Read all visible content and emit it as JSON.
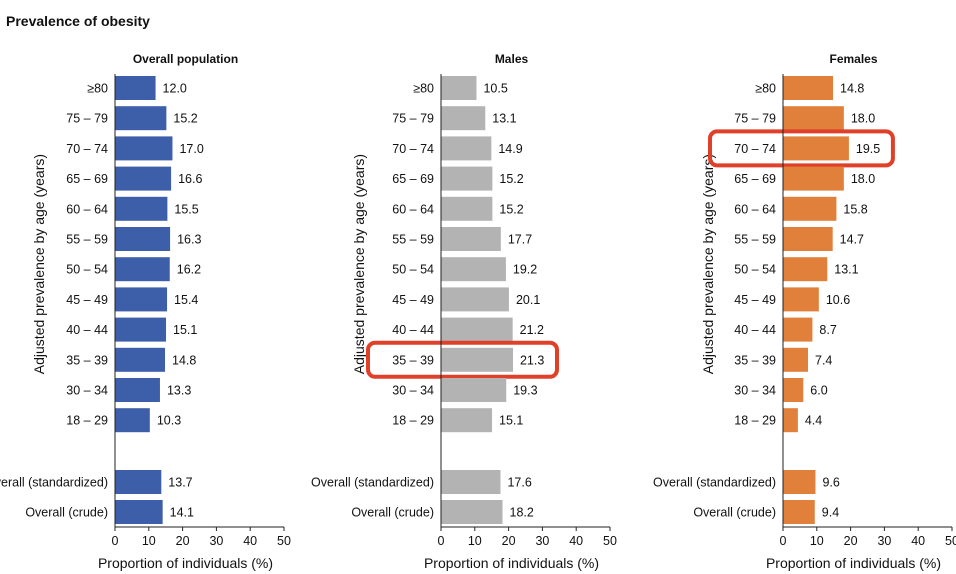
{
  "figure": {
    "title": "Prevalence of obesity",
    "ylabel": "Adjusted prevalence by age (years)"
  },
  "chart_data": [
    {
      "type": "bar",
      "orientation": "horizontal",
      "title": "Overall population",
      "xlabel": "Proportion of individuals (%)",
      "ylabel": "Adjusted prevalence by age (years)",
      "xlim": [
        0,
        50
      ],
      "xticks": [
        "0",
        "10",
        "20",
        "30",
        "40",
        "50"
      ],
      "color": "#3d5ea8",
      "categories": [
        "≥80",
        "75 – 79",
        "70 – 74",
        "65 – 69",
        "60 – 64",
        "55 – 59",
        "50 – 54",
        "45 – 49",
        "40 – 44",
        "35 – 39",
        "30 – 34",
        "18 – 29",
        "Overall (standardized)",
        "Overall (crude)"
      ],
      "values": [
        12.0,
        15.2,
        17.0,
        16.6,
        15.5,
        16.3,
        16.2,
        15.4,
        15.1,
        14.8,
        13.3,
        10.3,
        13.7,
        14.1
      ],
      "value_labels": [
        "12.0",
        "15.2",
        "17.0",
        "16.6",
        "15.5",
        "16.3",
        "16.2",
        "15.4",
        "15.1",
        "14.8",
        "13.3",
        "10.3",
        "13.7",
        "14.1"
      ],
      "highlighted": []
    },
    {
      "type": "bar",
      "orientation": "horizontal",
      "title": "Males",
      "xlabel": "Proportion of individuals (%)",
      "ylabel": "Adjusted prevalence by age (years)",
      "xlim": [
        0,
        50
      ],
      "xticks": [
        "0",
        "10",
        "20",
        "30",
        "40",
        "50"
      ],
      "color": "#b3b3b3",
      "categories": [
        "≥80",
        "75 – 79",
        "70 – 74",
        "65 – 69",
        "60 – 64",
        "55 – 59",
        "50 – 54",
        "45 – 49",
        "40 – 44",
        "35 – 39",
        "30 – 34",
        "18 – 29",
        "Overall (standardized)",
        "Overall (crude)"
      ],
      "values": [
        10.5,
        13.1,
        14.9,
        15.2,
        15.2,
        17.7,
        19.2,
        20.1,
        21.2,
        21.3,
        19.3,
        15.1,
        17.6,
        18.2
      ],
      "value_labels": [
        "10.5",
        "13.1",
        "14.9",
        "15.2",
        "15.2",
        "17.7",
        "19.2",
        "20.1",
        "21.2",
        "21.3",
        "19.3",
        "15.1",
        "17.6",
        "18.2"
      ],
      "highlighted": [
        "35 – 39"
      ]
    },
    {
      "type": "bar",
      "orientation": "horizontal",
      "title": "Females",
      "xlabel": "Proportion of individuals (%)",
      "ylabel": "Adjusted prevalence by age (years)",
      "xlim": [
        0,
        50
      ],
      "xticks": [
        "0",
        "10",
        "20",
        "30",
        "40",
        "50"
      ],
      "color": "#e0803a",
      "categories": [
        "≥80",
        "75 – 79",
        "70 – 74",
        "65 – 69",
        "60 – 64",
        "55 – 59",
        "50 – 54",
        "45 – 49",
        "40 – 44",
        "35 – 39",
        "30 – 34",
        "18 – 29",
        "Overall (standardized)",
        "Overall (crude)"
      ],
      "values": [
        14.8,
        18.0,
        19.5,
        18.0,
        15.8,
        14.7,
        13.1,
        10.6,
        8.7,
        7.4,
        6.0,
        4.4,
        9.6,
        9.4
      ],
      "value_labels": [
        "14.8",
        "18.0",
        "19.5",
        "18.0",
        "15.8",
        "14.7",
        "13.1",
        "10.6",
        "8.7",
        "7.4",
        "6.0",
        "4.4",
        "9.6",
        "9.4"
      ],
      "highlighted": [
        "70 – 74"
      ]
    }
  ],
  "highlight_color": "#e0402a"
}
